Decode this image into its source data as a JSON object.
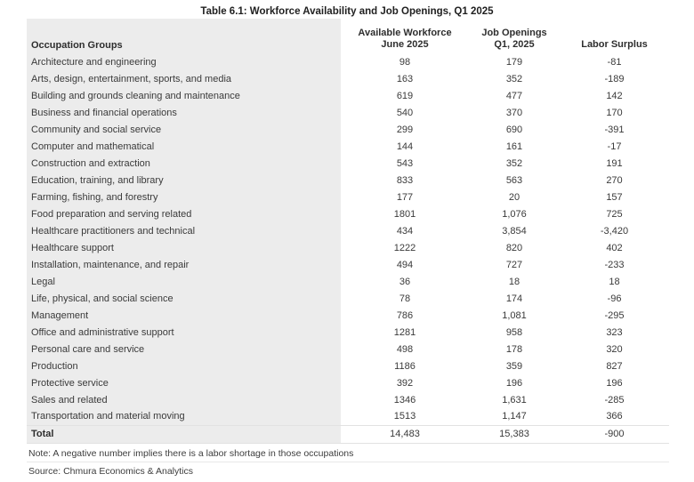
{
  "title": "Table 6.1: Workforce Availability and Job Openings, Q1 2025",
  "table": {
    "columns": [
      {
        "label": "Occupation Groups",
        "label2": ""
      },
      {
        "label": "Available Workforce",
        "label2": "June 2025"
      },
      {
        "label": "Job Openings",
        "label2": "Q1, 2025"
      },
      {
        "label": "Labor Surplus",
        "label2": ""
      }
    ],
    "rows": [
      {
        "occupation": "Architecture and engineering",
        "workforce": "98",
        "openings": "179",
        "surplus": "-81"
      },
      {
        "occupation": "Arts, design, entertainment, sports, and media",
        "workforce": "163",
        "openings": "352",
        "surplus": "-189"
      },
      {
        "occupation": "Building and grounds cleaning and maintenance",
        "workforce": "619",
        "openings": "477",
        "surplus": "142"
      },
      {
        "occupation": "Business and financial operations",
        "workforce": "540",
        "openings": "370",
        "surplus": "170"
      },
      {
        "occupation": "Community and social service",
        "workforce": "299",
        "openings": "690",
        "surplus": "-391"
      },
      {
        "occupation": "Computer and mathematical",
        "workforce": "144",
        "openings": "161",
        "surplus": "-17"
      },
      {
        "occupation": "Construction and extraction",
        "workforce": "543",
        "openings": "352",
        "surplus": "191"
      },
      {
        "occupation": "Education, training, and library",
        "workforce": "833",
        "openings": "563",
        "surplus": "270"
      },
      {
        "occupation": "Farming, fishing, and forestry",
        "workforce": "177",
        "openings": "20",
        "surplus": "157"
      },
      {
        "occupation": "Food preparation and serving related",
        "workforce": "1801",
        "openings": "1,076",
        "surplus": "725"
      },
      {
        "occupation": "Healthcare practitioners and technical",
        "workforce": "434",
        "openings": "3,854",
        "surplus": "-3,420"
      },
      {
        "occupation": "Healthcare support",
        "workforce": "1222",
        "openings": "820",
        "surplus": "402"
      },
      {
        "occupation": "Installation, maintenance, and repair",
        "workforce": "494",
        "openings": "727",
        "surplus": "-233"
      },
      {
        "occupation": "Legal",
        "workforce": "36",
        "openings": "18",
        "surplus": "18"
      },
      {
        "occupation": "Life, physical, and social science",
        "workforce": "78",
        "openings": "174",
        "surplus": "-96"
      },
      {
        "occupation": "Management",
        "workforce": "786",
        "openings": "1,081",
        "surplus": "-295"
      },
      {
        "occupation": "Office and administrative support",
        "workforce": "1281",
        "openings": "958",
        "surplus": "323"
      },
      {
        "occupation": "Personal care and service",
        "workforce": "498",
        "openings": "178",
        "surplus": "320"
      },
      {
        "occupation": "Production",
        "workforce": "1186",
        "openings": "359",
        "surplus": "827"
      },
      {
        "occupation": "Protective service",
        "workforce": "392",
        "openings": "196",
        "surplus": "196"
      },
      {
        "occupation": "Sales and related",
        "workforce": "1346",
        "openings": "1,631",
        "surplus": "-285"
      },
      {
        "occupation": "Transportation and material moving",
        "workforce": "1513",
        "openings": "1,147",
        "surplus": "366"
      }
    ],
    "total": {
      "occupation": "Total",
      "workforce": "14,483",
      "openings": "15,383",
      "surplus": "-900"
    }
  },
  "note": "Note: A negative number implies there is a labor shortage in those occupations",
  "source": "Source: Chmura Economics & Analytics",
  "colors": {
    "column_shade": "#ececec",
    "rule": "#e2e2e2",
    "text": "#3a3a3a"
  }
}
